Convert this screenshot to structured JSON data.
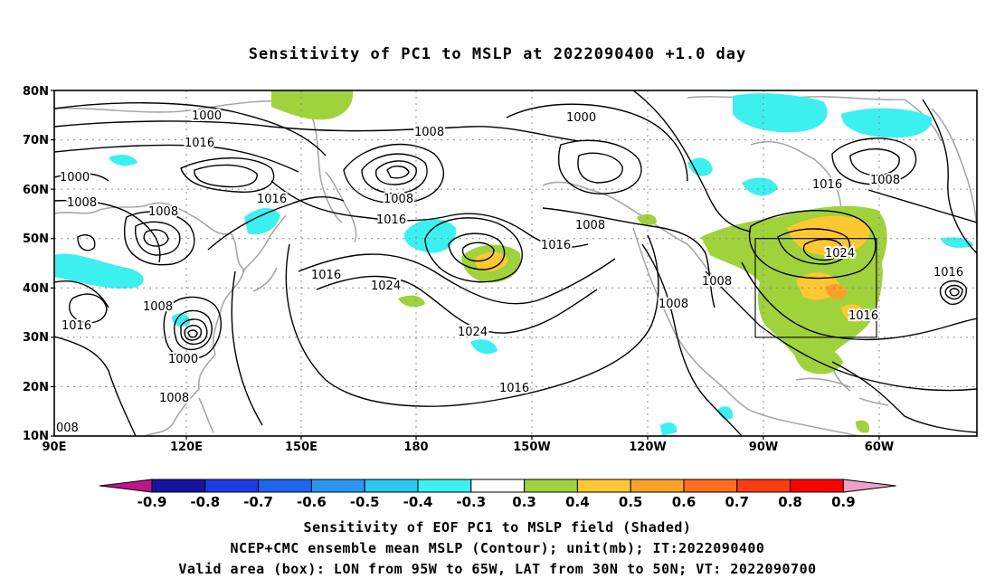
{
  "title": "Sensitivity of PC1 to MSLP at 2022090400 +1.0 day",
  "captions": [
    "Sensitivity of EOF PC1 to MSLP field (Shaded)",
    "NCEP+CMC ensemble mean MSLP (Contour); unit(mb); IT:2022090400",
    "Valid area (box): LON from 95W to 65W, LAT from 30N to 50N; VT: 2022090700"
  ],
  "map": {
    "lon_ticks": [
      "90E",
      "120E",
      "150E",
      "180",
      "150W",
      "120W",
      "90W",
      "60W"
    ],
    "lat_ticks": [
      "80N",
      "70N",
      "60N",
      "50N",
      "40N",
      "30N",
      "20N",
      "10N"
    ],
    "grid": "dotted",
    "valid_box": {
      "lon_from": "95W",
      "lon_to": "65W",
      "lat_from": "30N",
      "lat_to": "50N"
    },
    "contour_labels": [
      {
        "text": "1000"
      },
      {
        "text": "1016"
      },
      {
        "text": "1000"
      },
      {
        "text": "1008"
      },
      {
        "text": "1008"
      },
      {
        "text": "1008"
      },
      {
        "text": "1016"
      },
      {
        "text": "1008"
      },
      {
        "text": "1016"
      },
      {
        "text": "1016"
      },
      {
        "text": "1024"
      },
      {
        "text": "1008"
      },
      {
        "text": "1016"
      },
      {
        "text": "1000"
      },
      {
        "text": "1008"
      },
      {
        "text": "1000"
      },
      {
        "text": "1008"
      },
      {
        "text": "1016"
      },
      {
        "text": "1024"
      },
      {
        "text": "1016"
      },
      {
        "text": "1008"
      },
      {
        "text": "1008"
      },
      {
        "text": "1016"
      },
      {
        "text": "1008"
      },
      {
        "text": "1024"
      },
      {
        "text": "1016"
      },
      {
        "text": "1016"
      },
      {
        "text": "008"
      }
    ]
  },
  "colorbar": {
    "labels": [
      "-0.9",
      "-0.8",
      "-0.7",
      "-0.6",
      "-0.5",
      "-0.4",
      "-0.3",
      "0.3",
      "0.4",
      "0.5",
      "0.6",
      "0.7",
      "0.8",
      "0.9"
    ],
    "colors": [
      "#c0148c",
      "#1414a0",
      "#1e3ce6",
      "#1e64f0",
      "#2896f0",
      "#28c8f0",
      "#3cf0f0",
      "#ffffff",
      "#a0d23c",
      "#ffc832",
      "#ffa028",
      "#ff6e1e",
      "#ff3c14",
      "#ff0000",
      "#f0a0c8"
    ]
  }
}
